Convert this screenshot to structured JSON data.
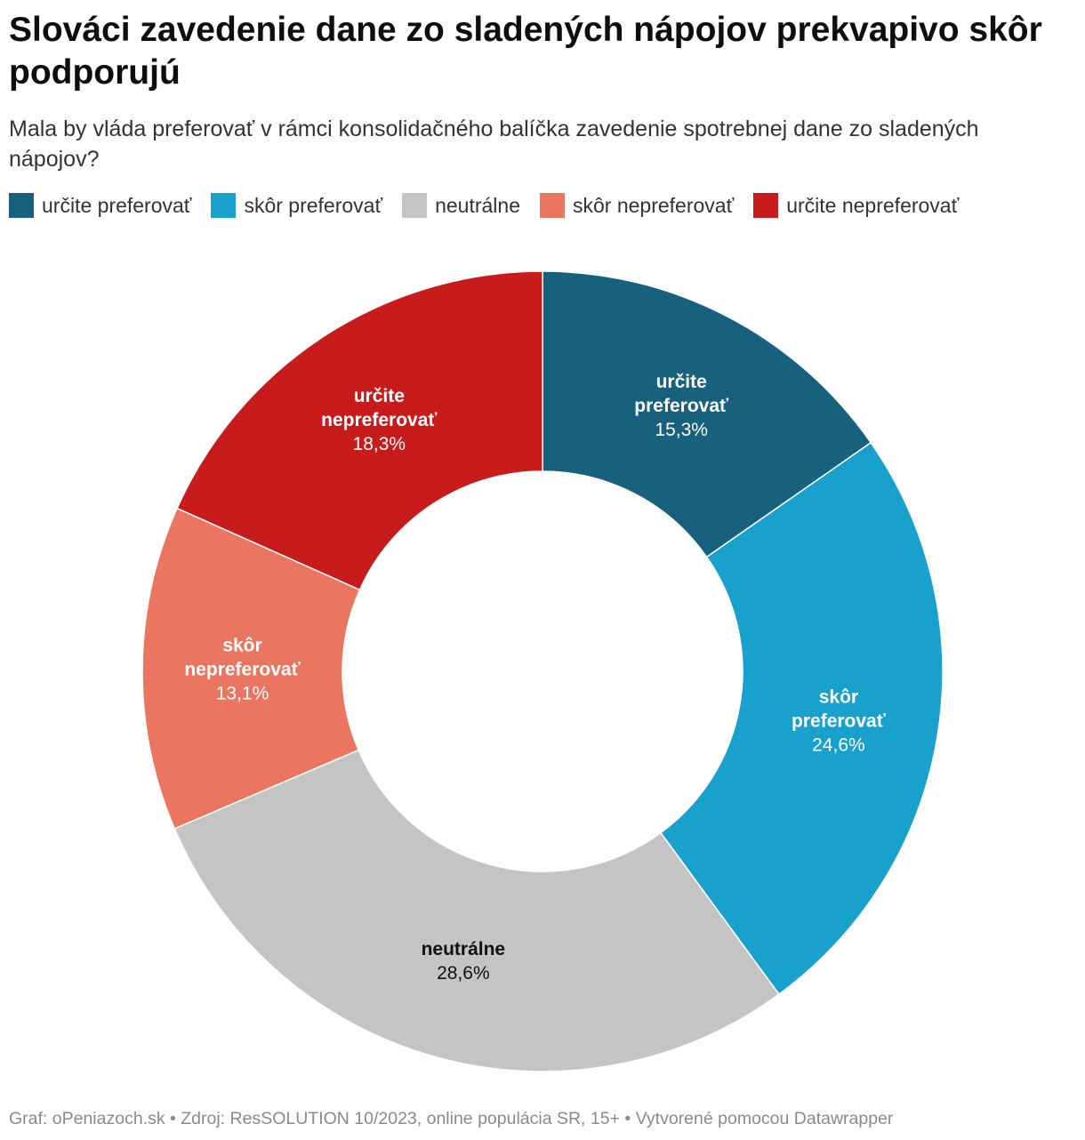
{
  "header": {
    "title": "Slováci zavedenie dane zo sladených nápojov prekvapivo skôr podporujú",
    "subtitle": "Mala by vláda preferovať v rámci konsolidačného balíčka zavedenie spotrebnej dane zo sladených nápojov?"
  },
  "legend": [
    {
      "label": "určite preferovať",
      "color": "#18617e"
    },
    {
      "label": "skôr preferovať",
      "color": "#19a1cd"
    },
    {
      "label": "neutrálne",
      "color": "#c4c4c4"
    },
    {
      "label": "skôr nepreferovať",
      "color": "#ea7661"
    },
    {
      "label": "určite nepreferovať",
      "color": "#c81c1c"
    }
  ],
  "chart_data": {
    "type": "pie",
    "donut": true,
    "slices": [
      {
        "name_lines": [
          "určite",
          "preferovať"
        ],
        "value": 15.3,
        "value_label": "15,3%",
        "color": "#18617e",
        "text_color": "#ffffff"
      },
      {
        "name_lines": [
          "skôr",
          "preferovať"
        ],
        "value": 24.6,
        "value_label": "24,6%",
        "color": "#19a1cd",
        "text_color": "#ffffff"
      },
      {
        "name_lines": [
          "neutrálne"
        ],
        "value": 28.6,
        "value_label": "28,6%",
        "color": "#c4c4c4",
        "text_color": "#111111"
      },
      {
        "name_lines": [
          "skôr",
          "nepreferovať"
        ],
        "value": 13.1,
        "value_label": "13,1%",
        "color": "#ea7661",
        "text_color": "#ffffff"
      },
      {
        "name_lines": [
          "určite",
          "nepreferovať"
        ],
        "value": 18.3,
        "value_label": "18,3%",
        "color": "#c81c1c",
        "text_color": "#ffffff"
      }
    ]
  },
  "footer": {
    "text": "Graf: oPeniazoch.sk • Zdroj: ResSOLUTION 10/2023, online populácia SR, 15+ • Vytvorené pomocou Datawrapper"
  }
}
